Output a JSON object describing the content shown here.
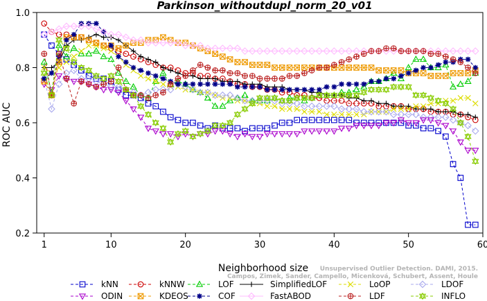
{
  "chart_data": {
    "type": "line",
    "title": "Parkinson_withoutdupl_norm_20_v01",
    "xlabel": "Neighborhood size",
    "ylabel": "ROC AUC",
    "xlim": [
      0,
      60
    ],
    "ylim": [
      0.2,
      1.0
    ],
    "xticks": [
      1,
      10,
      20,
      30,
      40,
      50,
      60
    ],
    "yticks": [
      0.2,
      0.4,
      0.6,
      0.8,
      1.0
    ],
    "grid": false,
    "legend_position": "bottom",
    "x": [
      1,
      2,
      3,
      4,
      5,
      6,
      7,
      8,
      9,
      10,
      11,
      12,
      13,
      14,
      15,
      16,
      17,
      18,
      19,
      20,
      21,
      22,
      23,
      24,
      25,
      26,
      27,
      28,
      29,
      30,
      31,
      32,
      33,
      34,
      35,
      36,
      37,
      38,
      39,
      40,
      41,
      42,
      43,
      44,
      45,
      46,
      47,
      48,
      49,
      50,
      51,
      52,
      53,
      54,
      55,
      56,
      57,
      58,
      59
    ],
    "series": [
      {
        "name": "kNN",
        "color": "#0000cc",
        "marker": "square",
        "dash": "4,3",
        "values": [
          0.92,
          0.88,
          0.85,
          0.83,
          0.81,
          0.79,
          0.77,
          0.76,
          0.76,
          0.75,
          0.72,
          0.7,
          0.7,
          0.69,
          0.67,
          0.66,
          0.64,
          0.62,
          0.61,
          0.6,
          0.6,
          0.59,
          0.58,
          0.59,
          0.58,
          0.58,
          0.58,
          0.57,
          0.58,
          0.58,
          0.58,
          0.59,
          0.6,
          0.6,
          0.61,
          0.61,
          0.61,
          0.61,
          0.61,
          0.61,
          0.61,
          0.61,
          0.6,
          0.6,
          0.6,
          0.6,
          0.6,
          0.6,
          0.6,
          0.59,
          0.59,
          0.58,
          0.58,
          0.57,
          0.55,
          0.45,
          0.4,
          0.23,
          0.23
        ]
      },
      {
        "name": "kNNW",
        "color": "#cc0000",
        "marker": "circle",
        "dash": "4,3",
        "values": [
          0.96,
          0.93,
          0.92,
          0.92,
          0.91,
          0.91,
          0.9,
          0.89,
          0.88,
          0.87,
          0.86,
          0.85,
          0.84,
          0.83,
          0.82,
          0.81,
          0.8,
          0.8,
          0.79,
          0.78,
          0.78,
          0.77,
          0.77,
          0.76,
          0.76,
          0.75,
          0.74,
          0.74,
          0.73,
          0.73,
          0.72,
          0.72,
          0.71,
          0.71,
          0.7,
          0.7,
          0.69,
          0.69,
          0.68,
          0.68,
          0.68,
          0.67,
          0.67,
          0.67,
          0.67,
          0.66,
          0.66,
          0.66,
          0.66,
          0.65,
          0.65,
          0.65,
          0.64,
          0.64,
          0.64,
          0.63,
          0.63,
          0.62,
          0.61
        ]
      },
      {
        "name": "LOF",
        "color": "#00cc00",
        "marker": "triangle-up",
        "dash": "4,3",
        "values": [
          0.82,
          0.71,
          0.88,
          0.84,
          0.87,
          0.85,
          0.85,
          0.86,
          0.84,
          0.83,
          0.78,
          0.75,
          0.73,
          0.7,
          0.69,
          0.75,
          0.78,
          0.74,
          0.75,
          0.74,
          0.72,
          0.71,
          0.69,
          0.66,
          0.66,
          0.68,
          0.69,
          0.7,
          0.68,
          0.68,
          0.68,
          0.69,
          0.68,
          0.69,
          0.69,
          0.68,
          0.69,
          0.7,
          0.7,
          0.7,
          0.71,
          0.71,
          0.72,
          0.73,
          0.75,
          0.75,
          0.76,
          0.78,
          0.76,
          0.8,
          0.83,
          0.83,
          0.8,
          0.8,
          0.81,
          0.73,
          0.74,
          0.75,
          0.78
        ]
      },
      {
        "name": "SimplifiedLOF",
        "color": "#000000",
        "marker": "plus",
        "dash": "",
        "values": [
          0.8,
          0.8,
          0.82,
          0.88,
          0.9,
          0.9,
          0.91,
          0.92,
          0.91,
          0.91,
          0.9,
          0.88,
          0.86,
          0.84,
          0.83,
          0.82,
          0.8,
          0.79,
          0.78,
          0.77,
          0.77,
          0.76,
          0.76,
          0.76,
          0.75,
          0.75,
          0.75,
          0.74,
          0.74,
          0.74,
          0.73,
          0.73,
          0.73,
          0.72,
          0.72,
          0.72,
          0.71,
          0.71,
          0.7,
          0.7,
          0.7,
          0.69,
          0.69,
          0.68,
          0.68,
          0.67,
          0.67,
          0.66,
          0.66,
          0.66,
          0.65,
          0.65,
          0.65,
          0.64,
          0.64,
          0.64,
          0.63,
          0.63,
          0.62
        ]
      },
      {
        "name": "LoOP",
        "color": "#dddd00",
        "marker": "x",
        "dash": "4,3",
        "values": [
          0.8,
          0.78,
          0.8,
          0.82,
          0.84,
          0.86,
          0.88,
          0.88,
          0.87,
          0.86,
          0.84,
          0.81,
          0.79,
          0.77,
          0.76,
          0.75,
          0.74,
          0.73,
          0.73,
          0.72,
          0.72,
          0.71,
          0.71,
          0.7,
          0.69,
          0.69,
          0.68,
          0.68,
          0.67,
          0.67,
          0.66,
          0.66,
          0.65,
          0.65,
          0.65,
          0.64,
          0.64,
          0.64,
          0.63,
          0.63,
          0.63,
          0.63,
          0.63,
          0.63,
          0.64,
          0.64,
          0.64,
          0.65,
          0.65,
          0.65,
          0.66,
          0.66,
          0.67,
          0.67,
          0.68,
          0.68,
          0.69,
          0.69,
          0.67
        ]
      },
      {
        "name": "LDOF",
        "color": "#aaaaee",
        "marker": "diamond",
        "dash": "4,3",
        "values": [
          0.76,
          0.65,
          0.74,
          0.78,
          0.79,
          0.76,
          0.76,
          0.75,
          0.74,
          0.73,
          0.73,
          0.72,
          0.71,
          0.7,
          0.71,
          0.72,
          0.72,
          0.72,
          0.74,
          0.73,
          0.72,
          0.71,
          0.71,
          0.7,
          0.7,
          0.7,
          0.69,
          0.68,
          0.68,
          0.68,
          0.68,
          0.68,
          0.67,
          0.67,
          0.67,
          0.66,
          0.66,
          0.66,
          0.66,
          0.66,
          0.65,
          0.65,
          0.65,
          0.64,
          0.64,
          0.64,
          0.64,
          0.63,
          0.63,
          0.63,
          0.63,
          0.62,
          0.62,
          0.62,
          0.62,
          0.61,
          0.6,
          0.59,
          0.57
        ]
      },
      {
        "name": "ODIN",
        "color": "#aa00cc",
        "marker": "triangle-down",
        "dash": "4,3",
        "values": [
          0.74,
          0.72,
          0.77,
          0.76,
          0.75,
          0.75,
          0.74,
          0.73,
          0.72,
          0.72,
          0.71,
          0.68,
          0.65,
          0.62,
          0.58,
          0.57,
          0.56,
          0.56,
          0.55,
          0.56,
          0.55,
          0.56,
          0.56,
          0.57,
          0.57,
          0.56,
          0.55,
          0.56,
          0.55,
          0.55,
          0.56,
          0.56,
          0.56,
          0.56,
          0.56,
          0.57,
          0.57,
          0.57,
          0.57,
          0.57,
          0.58,
          0.58,
          0.59,
          0.59,
          0.59,
          0.59,
          0.6,
          0.6,
          0.61,
          0.6,
          0.6,
          0.61,
          0.61,
          0.6,
          0.59,
          0.57,
          0.53,
          0.5,
          0.5
        ]
      },
      {
        "name": "KDEOS",
        "color": "#ee9900",
        "marker": "square-x",
        "dash": "4,3",
        "values": [
          0.75,
          0.7,
          0.82,
          0.91,
          0.91,
          0.91,
          0.9,
          0.89,
          0.88,
          0.88,
          0.87,
          0.88,
          0.89,
          0.89,
          0.9,
          0.9,
          0.91,
          0.9,
          0.89,
          0.89,
          0.88,
          0.87,
          0.86,
          0.85,
          0.84,
          0.83,
          0.82,
          0.82,
          0.81,
          0.81,
          0.81,
          0.8,
          0.8,
          0.8,
          0.8,
          0.8,
          0.8,
          0.8,
          0.8,
          0.8,
          0.8,
          0.8,
          0.8,
          0.8,
          0.8,
          0.79,
          0.79,
          0.79,
          0.79,
          0.78,
          0.78,
          0.78,
          0.77,
          0.77,
          0.77,
          0.78,
          0.78,
          0.78,
          0.79
        ]
      },
      {
        "name": "COF",
        "color": "#000088",
        "marker": "asterisk",
        "dash": "4,3",
        "values": [
          0.76,
          0.78,
          0.84,
          0.9,
          0.92,
          0.96,
          0.96,
          0.96,
          0.93,
          0.88,
          0.84,
          0.82,
          0.8,
          0.79,
          0.78,
          0.77,
          0.76,
          0.75,
          0.74,
          0.74,
          0.74,
          0.74,
          0.74,
          0.74,
          0.74,
          0.74,
          0.73,
          0.73,
          0.73,
          0.73,
          0.72,
          0.72,
          0.72,
          0.72,
          0.72,
          0.72,
          0.72,
          0.72,
          0.73,
          0.73,
          0.74,
          0.74,
          0.74,
          0.74,
          0.75,
          0.75,
          0.76,
          0.76,
          0.77,
          0.78,
          0.79,
          0.8,
          0.8,
          0.81,
          0.82,
          0.82,
          0.83,
          0.83,
          0.8
        ]
      },
      {
        "name": "FastABOD",
        "color": "#ffbbff",
        "marker": "diamond",
        "dash": "",
        "values": [
          0.92,
          0.93,
          0.94,
          0.95,
          0.95,
          0.95,
          0.95,
          0.94,
          0.93,
          0.92,
          0.92,
          0.91,
          0.9,
          0.9,
          0.89,
          0.89,
          0.89,
          0.89,
          0.89,
          0.88,
          0.88,
          0.88,
          0.87,
          0.87,
          0.87,
          0.87,
          0.87,
          0.86,
          0.86,
          0.86,
          0.86,
          0.86,
          0.86,
          0.86,
          0.86,
          0.86,
          0.86,
          0.86,
          0.86,
          0.86,
          0.86,
          0.86,
          0.86,
          0.86,
          0.86,
          0.86,
          0.86,
          0.86,
          0.86,
          0.86,
          0.86,
          0.86,
          0.86,
          0.86,
          0.86,
          0.86,
          0.86,
          0.86,
          0.86
        ]
      },
      {
        "name": "LDF",
        "color": "#bb2222",
        "marker": "circle-plus",
        "dash": "4,3",
        "values": [
          0.85,
          0.7,
          0.85,
          0.76,
          0.67,
          0.75,
          0.74,
          0.73,
          0.74,
          0.75,
          0.8,
          0.72,
          0.7,
          0.7,
          0.69,
          0.7,
          0.71,
          0.74,
          0.76,
          0.77,
          0.79,
          0.81,
          0.8,
          0.79,
          0.79,
          0.78,
          0.78,
          0.77,
          0.77,
          0.76,
          0.76,
          0.76,
          0.76,
          0.77,
          0.77,
          0.78,
          0.79,
          0.8,
          0.8,
          0.81,
          0.82,
          0.83,
          0.84,
          0.85,
          0.86,
          0.86,
          0.87,
          0.87,
          0.86,
          0.86,
          0.86,
          0.86,
          0.85,
          0.85,
          0.84,
          0.83,
          0.82,
          0.8,
          0.78
        ]
      },
      {
        "name": "INFLO",
        "color": "#88cc00",
        "marker": "hourglass",
        "dash": "4,3",
        "values": [
          0.78,
          0.7,
          0.9,
          0.87,
          0.82,
          0.8,
          0.79,
          0.77,
          0.76,
          0.77,
          0.75,
          0.72,
          0.7,
          0.66,
          0.63,
          0.6,
          0.58,
          0.53,
          0.56,
          0.57,
          0.55,
          0.56,
          0.57,
          0.59,
          0.59,
          0.6,
          0.63,
          0.65,
          0.67,
          0.69,
          0.69,
          0.69,
          0.68,
          0.68,
          0.69,
          0.69,
          0.69,
          0.7,
          0.7,
          0.7,
          0.7,
          0.7,
          0.7,
          0.71,
          0.72,
          0.72,
          0.72,
          0.73,
          0.73,
          0.73,
          0.7,
          0.7,
          0.69,
          0.68,
          0.67,
          0.65,
          0.6,
          0.55,
          0.46
        ]
      }
    ],
    "watermark_lines": [
      "Campos, Zimek, Sander, Campello, Micenková, Schubert, Assent, Houle",
      "Unsupervised Outlier Detection. DAMI, 2015."
    ]
  }
}
